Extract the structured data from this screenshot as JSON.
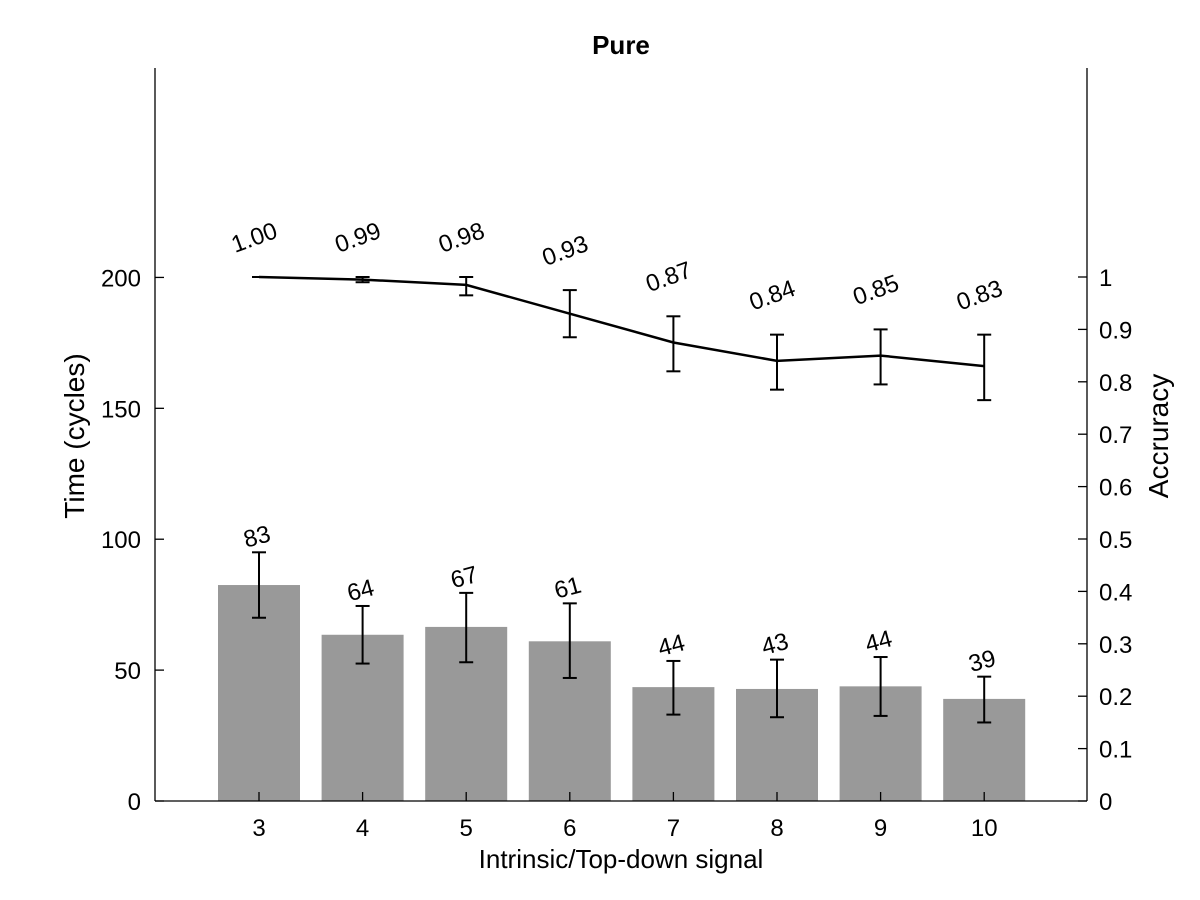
{
  "chart_data": {
    "type": "bar",
    "title": "Pure",
    "xlabel": "Intrinsic/Top-down signal",
    "ylabel": "Time (cycles)",
    "y2label": "Accruracy",
    "categories": [
      "3",
      "4",
      "5",
      "6",
      "7",
      "8",
      "9",
      "10"
    ],
    "ylim": [
      0,
      280
    ],
    "yticks": [
      0,
      50,
      100,
      150,
      200
    ],
    "y2lim": [
      0,
      1.0
    ],
    "y2ticks": [
      "0",
      "0.1",
      "0.2",
      "0.3",
      "0.4",
      "0.5",
      "0.6",
      "0.7",
      "0.8",
      "0.9",
      "1"
    ],
    "bars": {
      "values": [
        82.5,
        63.5,
        66.5,
        61,
        43.5,
        42.8,
        43.8,
        39
      ],
      "err_low": [
        70,
        52.5,
        53,
        47,
        33,
        32,
        32.5,
        30
      ],
      "err_high": [
        95,
        74.5,
        79.5,
        75.5,
        53.5,
        54,
        55,
        47.5
      ],
      "labels": [
        "83",
        "64",
        "67",
        "61",
        "44",
        "43",
        "44",
        "39"
      ]
    },
    "line": {
      "values": [
        1.0,
        0.995,
        0.985,
        0.93,
        0.875,
        0.84,
        0.85,
        0.83
      ],
      "err_low": [
        1.0,
        0.99,
        0.965,
        0.885,
        0.82,
        0.785,
        0.795,
        0.765
      ],
      "err_high": [
        1.0,
        1.0,
        1.0,
        0.975,
        0.925,
        0.89,
        0.9,
        0.89
      ],
      "labels": [
        "1.00",
        "0.99",
        "0.98",
        "0.93",
        "0.87",
        "0.84",
        "0.85",
        "0.83"
      ]
    },
    "colors": {
      "bar": "#999999",
      "line": "#000000",
      "error": "#000000"
    },
    "grid": false,
    "legend": "none"
  }
}
